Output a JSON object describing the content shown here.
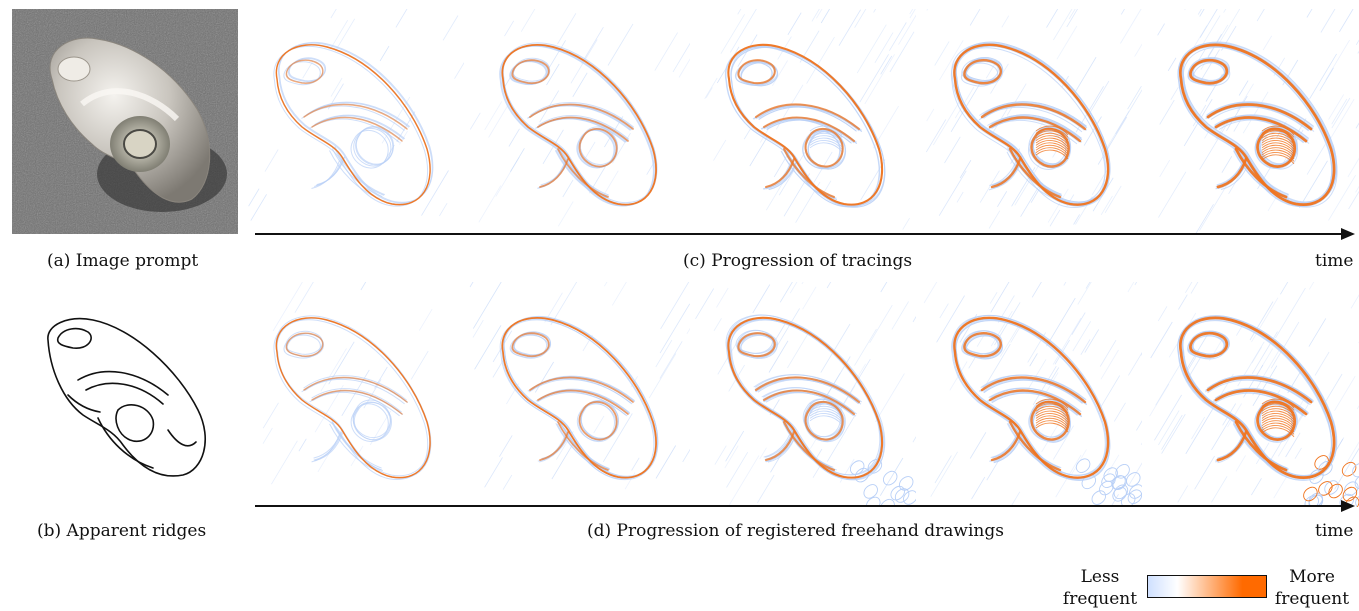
{
  "captions": {
    "a": "(a) Image prompt",
    "b": "(b) Apparent ridges",
    "c": "(c) Progression of tracings",
    "d": "(d) Progression of registered freehand drawings",
    "time_top": "time",
    "time_bottom": "time"
  },
  "legend": {
    "less_line1": "Less",
    "less_line2": "frequent",
    "more_line1": "More",
    "more_line2": "frequent",
    "gradient_colors": [
      "#cfe0ff",
      "#ffffff",
      "#ff6a00",
      "#ff6a00"
    ]
  },
  "colors": {
    "stroke_frequent": "#f0741e",
    "stroke_rare": "#b9d0f7",
    "photo_bg": "#6f6f6f",
    "arrow": "#111111"
  },
  "progressions": {
    "tracings_stage_levels": [
      0.15,
      0.35,
      0.55,
      0.75,
      0.95
    ],
    "freehand_stage_levels": [
      0.15,
      0.35,
      0.55,
      0.75,
      0.95
    ]
  }
}
